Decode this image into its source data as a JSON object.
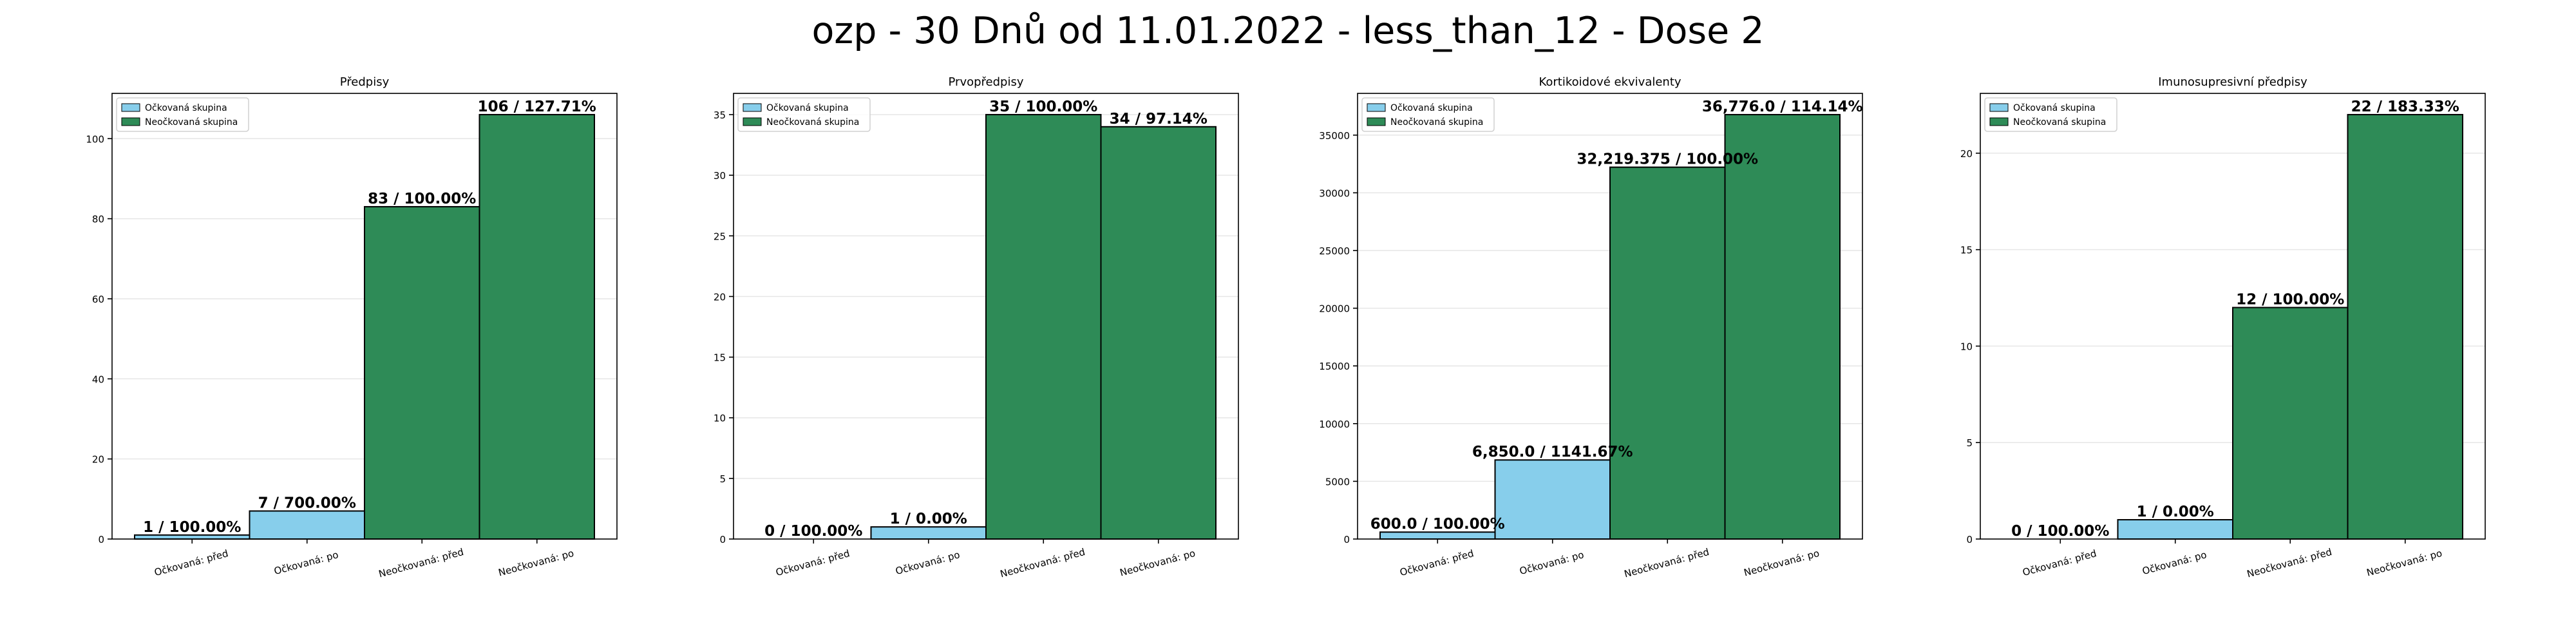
{
  "title": "ozp - 30 Dnů od 11.01.2022 - less_than_12 - Dose 2",
  "legend": {
    "vaccinated": "Očkovaná skupina",
    "unvaccinated": "Neočkovaná skupina",
    "placement": "upper-left"
  },
  "colors": {
    "vaccinated": "#87ceeb",
    "unvaccinated": "#2e8b57",
    "edge": "#000000",
    "grid": "#e6e6e6"
  },
  "chart_data": [
    {
      "type": "bar",
      "title": "Předpisy",
      "categories": [
        "Očkovaná: před",
        "Očkovaná: po",
        "Neočkovaná: před",
        "Neočkovaná: po"
      ],
      "values": [
        1,
        7,
        83,
        106
      ],
      "labels": [
        "1 / 100.00%",
        "7 / 700.00%",
        "83 / 100.00%",
        "106 / 127.71%"
      ],
      "ylim": [
        0,
        111.3
      ],
      "yticks": [
        0,
        20,
        40,
        60,
        80,
        100
      ],
      "ytick_labels": [
        "0",
        "20",
        "40",
        "60",
        "80",
        "100"
      ],
      "grid": true
    },
    {
      "type": "bar",
      "title": "Prvopředpisy",
      "categories": [
        "Očkovaná: před",
        "Očkovaná: po",
        "Neočkovaná: před",
        "Neočkovaná: po"
      ],
      "values": [
        0,
        1,
        35,
        34
      ],
      "labels": [
        "0 / 100.00%",
        "1 / 0.00%",
        "35 / 100.00%",
        "34 / 97.14%"
      ],
      "ylim": [
        0,
        36.75
      ],
      "yticks": [
        0,
        5,
        10,
        15,
        20,
        25,
        30,
        35
      ],
      "ytick_labels": [
        "0",
        "5",
        "10",
        "15",
        "20",
        "25",
        "30",
        "35"
      ],
      "grid": true
    },
    {
      "type": "bar",
      "title": "Kortikoidové ekvivalenty",
      "categories": [
        "Očkovaná: před",
        "Očkovaná: po",
        "Neočkovaná: před",
        "Neočkovaná: po"
      ],
      "values": [
        600.0,
        6850.0,
        32219.375,
        36776.0
      ],
      "labels": [
        "600.0 / 100.00%",
        "6,850.0 / 1141.67%",
        "32,219.375 / 100.00%",
        "36,776.0 / 114.14%"
      ],
      "ylim": [
        0,
        38615
      ],
      "yticks": [
        0,
        5000,
        10000,
        15000,
        20000,
        25000,
        30000,
        35000
      ],
      "ytick_labels": [
        "0",
        "5000",
        "10000",
        "15000",
        "20000",
        "25000",
        "30000",
        "35000"
      ],
      "grid": true
    },
    {
      "type": "bar",
      "title": "Imunosupresivní předpisy",
      "categories": [
        "Očkovaná: před",
        "Očkovaná: po",
        "Neočkovaná: před",
        "Neočkovaná: po"
      ],
      "values": [
        0,
        1,
        12,
        22
      ],
      "labels": [
        "0 / 100.00%",
        "1 / 0.00%",
        "12 / 100.00%",
        "22 / 183.33%"
      ],
      "ylim": [
        0,
        23.1
      ],
      "yticks": [
        0,
        5,
        10,
        15,
        20
      ],
      "ytick_labels": [
        "0",
        "5",
        "10",
        "15",
        "20"
      ],
      "grid": true
    }
  ]
}
